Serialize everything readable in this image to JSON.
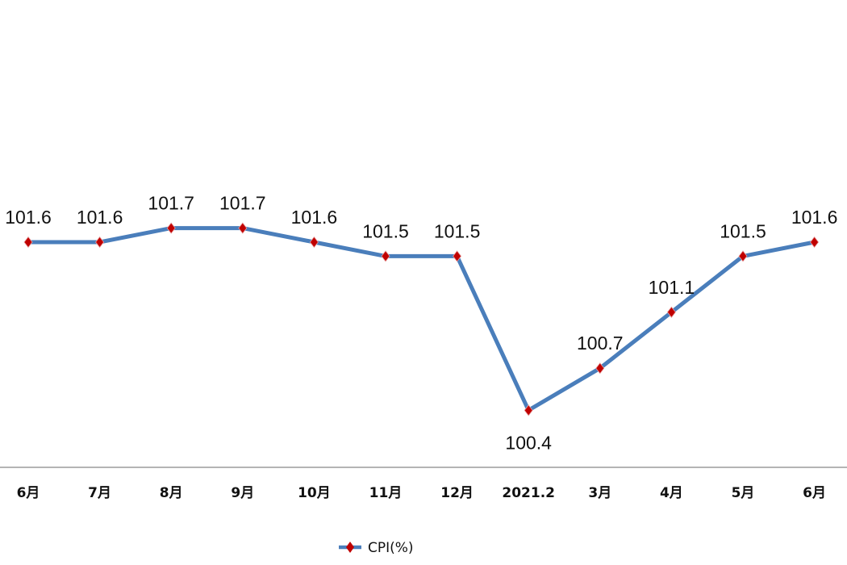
{
  "chart_data": {
    "type": "line",
    "title": "",
    "xlabel": "",
    "ylabel": "",
    "categories": [
      "6月",
      "7月",
      "8月",
      "9月",
      "10月",
      "11月",
      "12月",
      "2021.2",
      "3月",
      "4月",
      "5月",
      "6月"
    ],
    "series": [
      {
        "name": "CPI(%)",
        "values": [
          101.6,
          101.6,
          101.7,
          101.7,
          101.6,
          101.5,
          101.5,
          100.4,
          100.7,
          101.1,
          101.5,
          101.6
        ],
        "color": "#4a7ebb",
        "marker_color": "#c00000",
        "marker": "diamond"
      }
    ],
    "data_labels": [
      "101.6",
      "101.6",
      "101.7",
      "101.7",
      "101.6",
      "101.5",
      "101.5",
      "100.4",
      "100.7",
      "101.1",
      "101.5",
      "101.6"
    ],
    "ylim": [
      100.0,
      102.5
    ],
    "grid": false,
    "legend": "bottom",
    "axis_line_color": "#888888"
  }
}
